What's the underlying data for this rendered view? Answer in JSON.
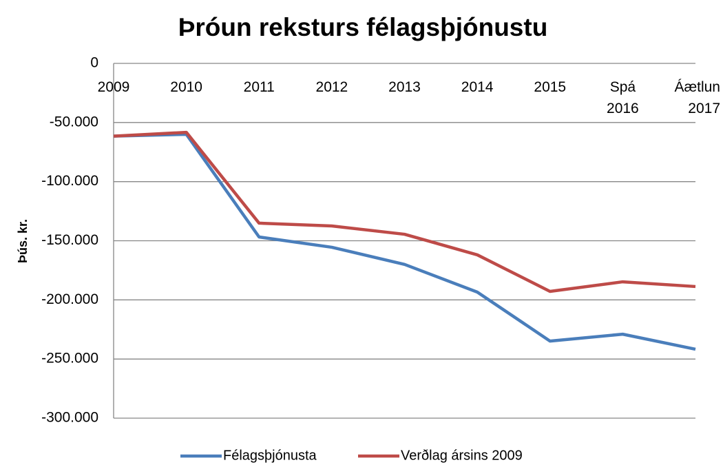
{
  "chart_data": {
    "type": "line",
    "title": "Þróun reksturs félagsþjónustu",
    "y_label": "Þús. kr.",
    "categories": [
      "2009",
      "2010",
      "2011",
      "2012",
      "2013",
      "2014",
      "2015",
      "Spá 2016",
      "Áætlun 2017"
    ],
    "series": [
      {
        "name": "Félagsþjónusta",
        "color": "#4a7ebb",
        "values": [
          -61500,
          -60000,
          -146800,
          -155500,
          -170000,
          -193400,
          -234800,
          -229000,
          -241700
        ]
      },
      {
        "name": "Verðlag ársins 2009",
        "color": "#be4b48",
        "values": [
          -61500,
          -58300,
          -135100,
          -137500,
          -144500,
          -161900,
          -192800,
          -184700,
          -188700
        ]
      }
    ],
    "ylim": [
      -300000,
      0
    ],
    "yticks": [
      0,
      {
        "value": -50000,
        "label": "-50.000"
      },
      {
        "value": -100000,
        "label": "-100.000"
      },
      {
        "value": -150000,
        "label": "-150.000"
      },
      {
        "value": -200000,
        "label": "-200.000"
      },
      {
        "value": -250000,
        "label": "-250.000"
      },
      {
        "value": -300000,
        "label": "-300.000"
      }
    ],
    "grid": true,
    "legend": "bottom"
  }
}
